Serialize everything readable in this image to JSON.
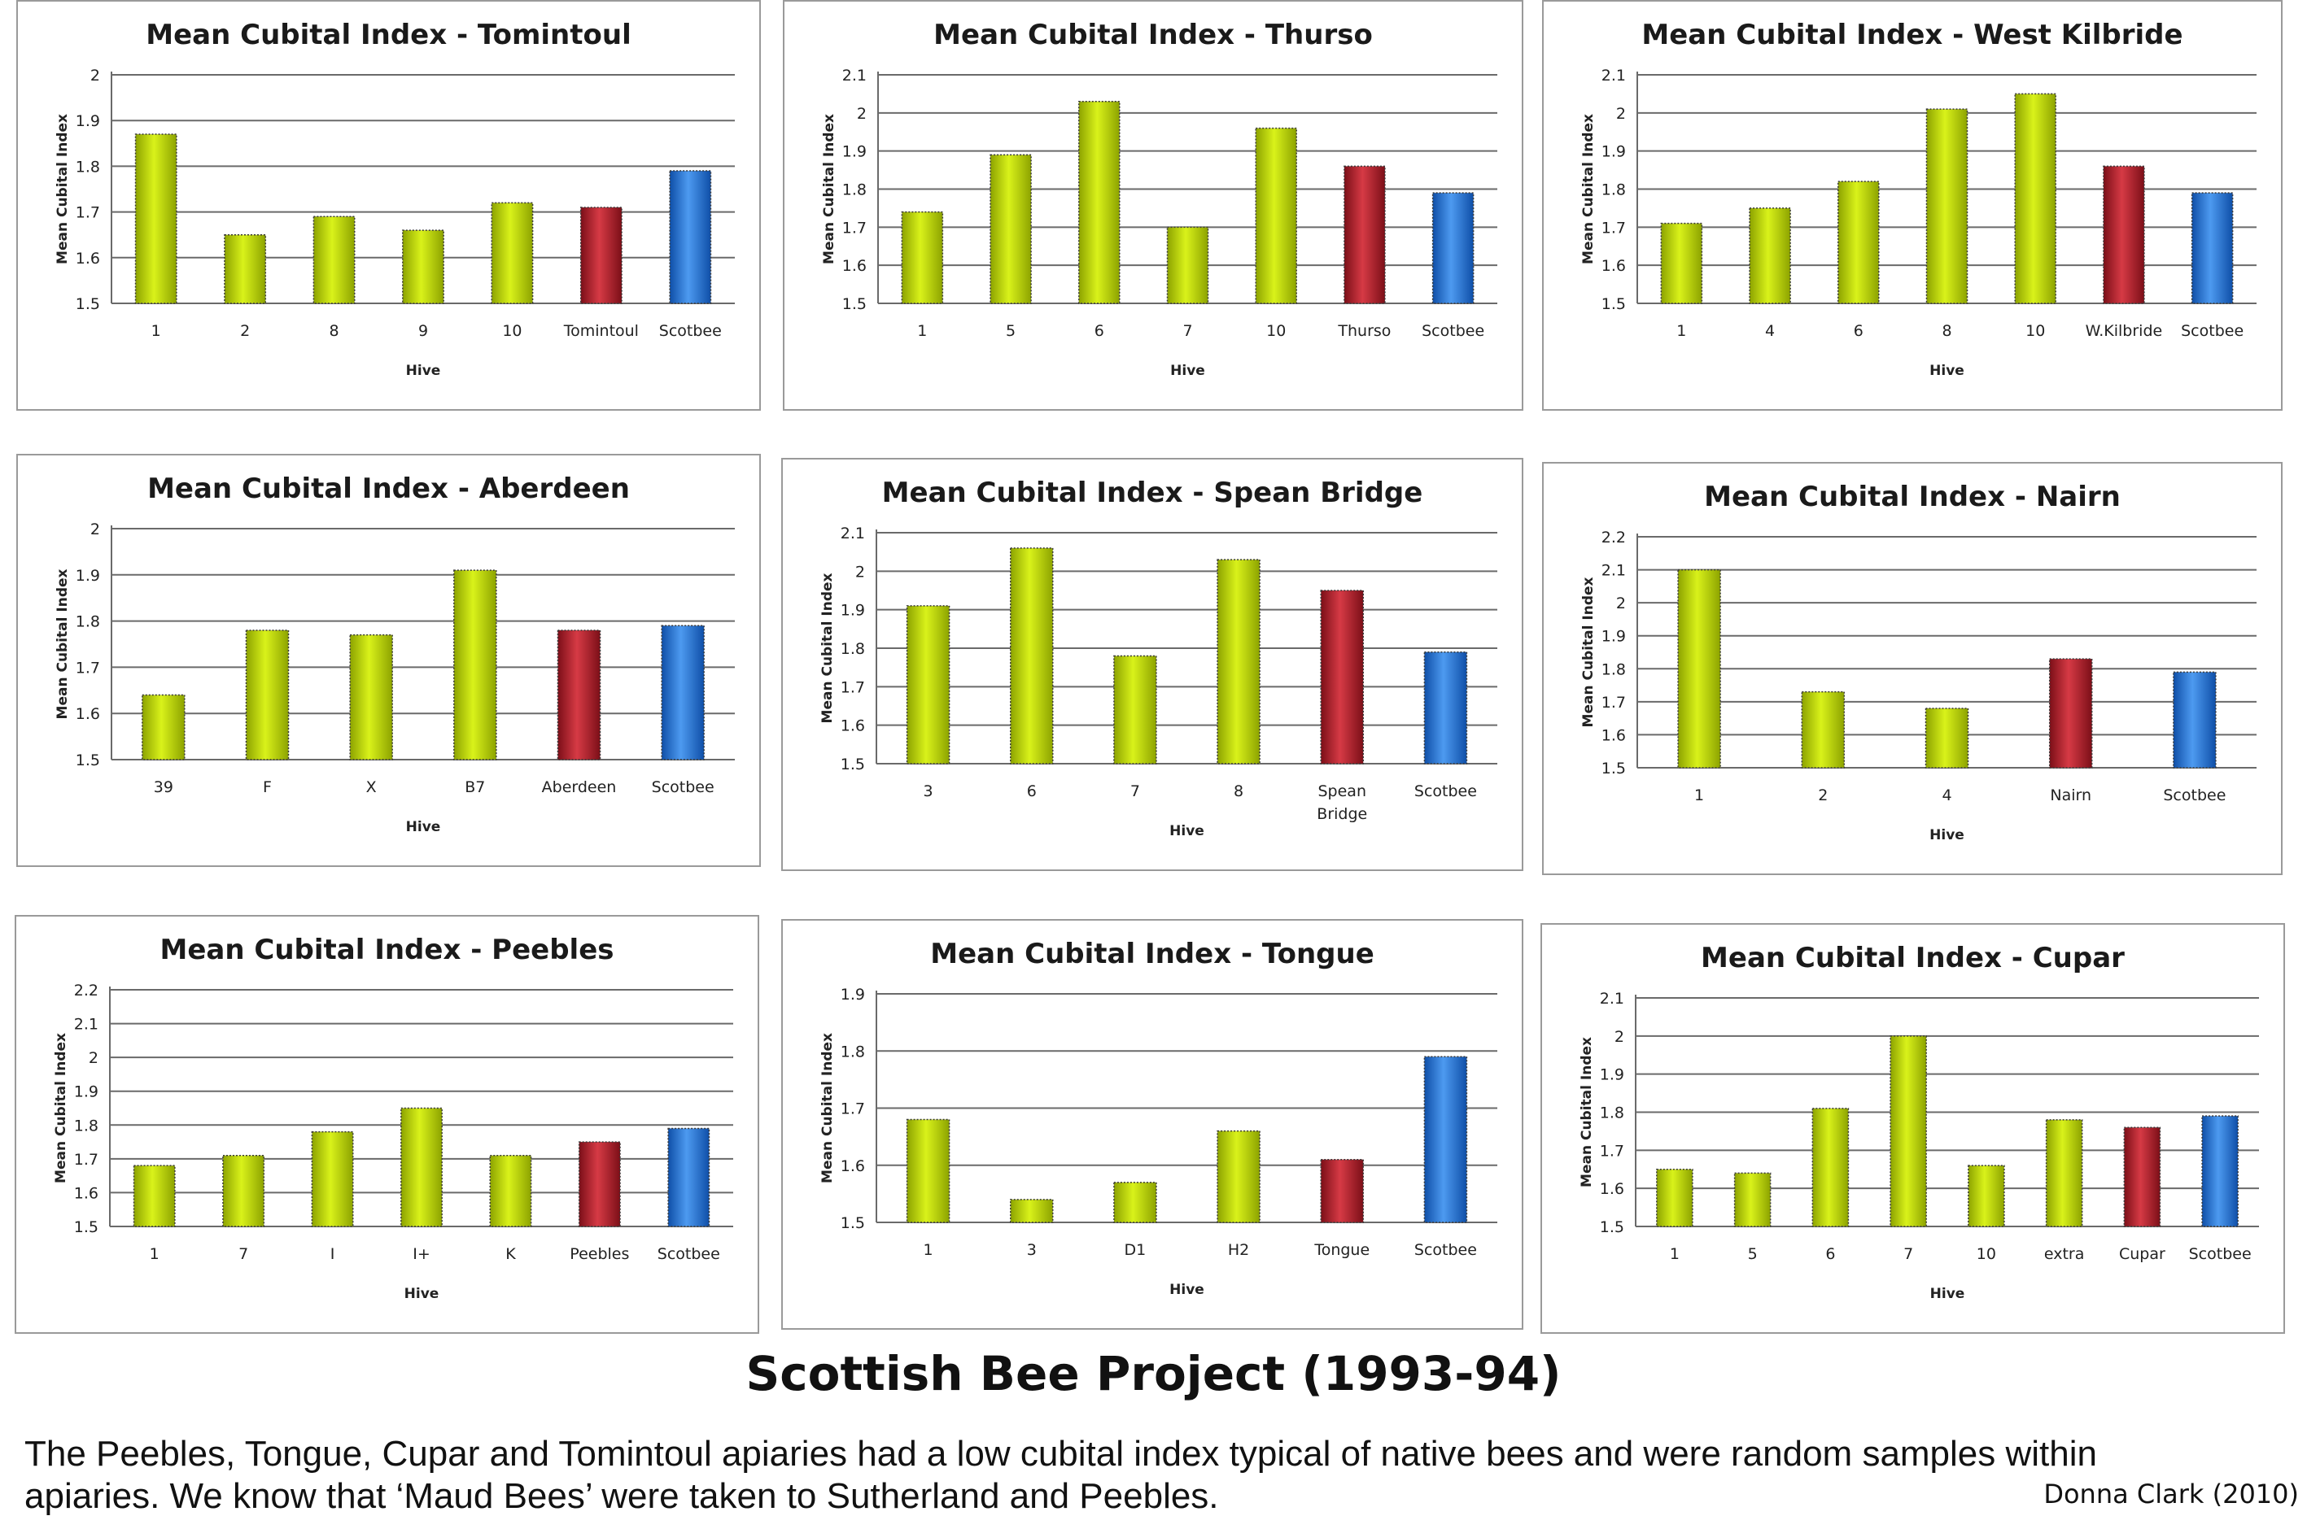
{
  "main_title": "Scottish Bee Project (1993-94)",
  "caption": "The Peebles, Tongue, Cupar and Tomintoul apiaries had a low cubital index typical of native bees and were random samples within apiaries. We know that ‘Maud Bees’ were taken to Sutherland and Peebles.",
  "credit": "Donna Clark (2010)",
  "colors": {
    "hive": "#b5d400",
    "apiary": "#b01e2a",
    "scotbee": "#1e6fd8"
  },
  "chart_data": [
    {
      "type": "bar",
      "title": "Mean Cubital Index - Tomintoul",
      "xlabel": "Hive",
      "ylabel": "Mean Cubital Index",
      "ylim": [
        1.5,
        2.0
      ],
      "yticks": [
        "1.5",
        "1.6",
        "1.7",
        "1.8",
        "1.9",
        "2"
      ],
      "categories": [
        "1",
        "2",
        "8",
        "9",
        "10",
        "Tomintoul",
        "Scotbee"
      ],
      "values": [
        1.87,
        1.65,
        1.69,
        1.66,
        1.72,
        1.71,
        1.79
      ],
      "kinds": [
        "hive",
        "hive",
        "hive",
        "hive",
        "hive",
        "apiary",
        "scotbee"
      ]
    },
    {
      "type": "bar",
      "title": "Mean Cubital Index - Thurso",
      "xlabel": "Hive",
      "ylabel": "Mean Cubital Index",
      "ylim": [
        1.5,
        2.1
      ],
      "yticks": [
        "1.5",
        "1.6",
        "1.7",
        "1.8",
        "1.9",
        "2",
        "2.1"
      ],
      "categories": [
        "1",
        "5",
        "6",
        "7",
        "10",
        "Thurso",
        "Scotbee"
      ],
      "values": [
        1.74,
        1.89,
        2.03,
        1.7,
        1.96,
        1.86,
        1.79
      ],
      "kinds": [
        "hive",
        "hive",
        "hive",
        "hive",
        "hive",
        "apiary",
        "scotbee"
      ]
    },
    {
      "type": "bar",
      "title": "Mean Cubital Index - West Kilbride",
      "xlabel": "Hive",
      "ylabel": "Mean Cubital Index",
      "ylim": [
        1.5,
        2.1
      ],
      "yticks": [
        "1.5",
        "1.6",
        "1.7",
        "1.8",
        "1.9",
        "2",
        "2.1"
      ],
      "categories": [
        "1",
        "4",
        "6",
        "8",
        "10",
        "W.Kilbride",
        "Scotbee"
      ],
      "values": [
        1.71,
        1.75,
        1.82,
        2.01,
        2.05,
        1.86,
        1.79
      ],
      "kinds": [
        "hive",
        "hive",
        "hive",
        "hive",
        "hive",
        "apiary",
        "scotbee"
      ]
    },
    {
      "type": "bar",
      "title": "Mean Cubital Index - Aberdeen",
      "xlabel": "Hive",
      "ylabel": "Mean Cubital Index",
      "ylim": [
        1.5,
        2.0
      ],
      "yticks": [
        "1.5",
        "1.6",
        "1.7",
        "1.8",
        "1.9",
        "2"
      ],
      "categories": [
        "39",
        "F",
        "X",
        "B7",
        "Aberdeen",
        "Scotbee"
      ],
      "values": [
        1.64,
        1.78,
        1.77,
        1.91,
        1.78,
        1.79
      ],
      "kinds": [
        "hive",
        "hive",
        "hive",
        "hive",
        "apiary",
        "scotbee"
      ]
    },
    {
      "type": "bar",
      "title": "Mean Cubital Index - Spean Bridge",
      "xlabel": "Hive",
      "ylabel": "Mean Cubital Index",
      "ylim": [
        1.5,
        2.1
      ],
      "yticks": [
        "1.5",
        "1.6",
        "1.7",
        "1.8",
        "1.9",
        "2",
        "2.1"
      ],
      "categories": [
        "3",
        "6",
        "7",
        "8",
        "Spean Bridge",
        "Scotbee"
      ],
      "values": [
        1.91,
        2.06,
        1.78,
        2.03,
        1.95,
        1.79
      ],
      "kinds": [
        "hive",
        "hive",
        "hive",
        "hive",
        "apiary",
        "scotbee"
      ]
    },
    {
      "type": "bar",
      "title": "Mean Cubital Index - Nairn",
      "xlabel": "Hive",
      "ylabel": "Mean Cubital Index",
      "ylim": [
        1.5,
        2.2
      ],
      "yticks": [
        "1.5",
        "1.6",
        "1.7",
        "1.8",
        "1.9",
        "2",
        "2.1",
        "2.2"
      ],
      "categories": [
        "1",
        "2",
        "4",
        "Nairn",
        "Scotbee"
      ],
      "values": [
        2.1,
        1.73,
        1.68,
        1.83,
        1.79
      ],
      "kinds": [
        "hive",
        "hive",
        "hive",
        "apiary",
        "scotbee"
      ]
    },
    {
      "type": "bar",
      "title": "Mean Cubital Index - Peebles",
      "xlabel": "Hive",
      "ylabel": "Mean Cubital Index",
      "ylim": [
        1.5,
        2.2
      ],
      "yticks": [
        "1.5",
        "1.6",
        "1.7",
        "1.8",
        "1.9",
        "2",
        "2.1",
        "2.2"
      ],
      "categories": [
        "1",
        "7",
        "I",
        "I+",
        "K",
        "Peebles",
        "Scotbee"
      ],
      "values": [
        1.68,
        1.71,
        1.78,
        1.85,
        1.71,
        1.75,
        1.79
      ],
      "kinds": [
        "hive",
        "hive",
        "hive",
        "hive",
        "hive",
        "apiary",
        "scotbee"
      ]
    },
    {
      "type": "bar",
      "title": "Mean Cubital Index - Tongue",
      "xlabel": "Hive",
      "ylabel": "Mean Cubital Index",
      "ylim": [
        1.5,
        1.9
      ],
      "yticks": [
        "1.5",
        "1.6",
        "1.7",
        "1.8",
        "1.9"
      ],
      "categories": [
        "1",
        "3",
        "D1",
        "H2",
        "Tongue",
        "Scotbee"
      ],
      "values": [
        1.68,
        1.54,
        1.57,
        1.66,
        1.61,
        1.79
      ],
      "kinds": [
        "hive",
        "hive",
        "hive",
        "hive",
        "apiary",
        "scotbee"
      ]
    },
    {
      "type": "bar",
      "title": "Mean Cubital Index - Cupar",
      "xlabel": "Hive",
      "ylabel": "Mean Cubital Index",
      "ylim": [
        1.5,
        2.1
      ],
      "yticks": [
        "1.5",
        "1.6",
        "1.7",
        "1.8",
        "1.9",
        "2",
        "2.1"
      ],
      "categories": [
        "1",
        "5",
        "6",
        "7",
        "10",
        "extra",
        "Cupar",
        "Scotbee"
      ],
      "values": [
        1.65,
        1.64,
        1.81,
        2.0,
        1.66,
        1.78,
        1.76,
        1.79
      ],
      "kinds": [
        "hive",
        "hive",
        "hive",
        "hive",
        "hive",
        "hive",
        "apiary",
        "scotbee"
      ]
    }
  ]
}
